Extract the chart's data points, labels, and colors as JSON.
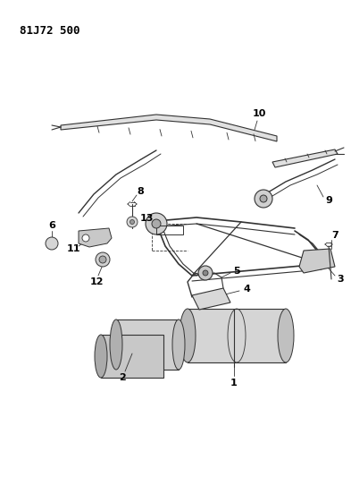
{
  "title": "81J72 500",
  "bg_color": "#ffffff",
  "line_color": "#333333",
  "label_color": "#000000",
  "figsize": [
    3.93,
    5.33
  ],
  "dpi": 100,
  "xlim": [
    0,
    393
  ],
  "ylim": [
    0,
    533
  ]
}
